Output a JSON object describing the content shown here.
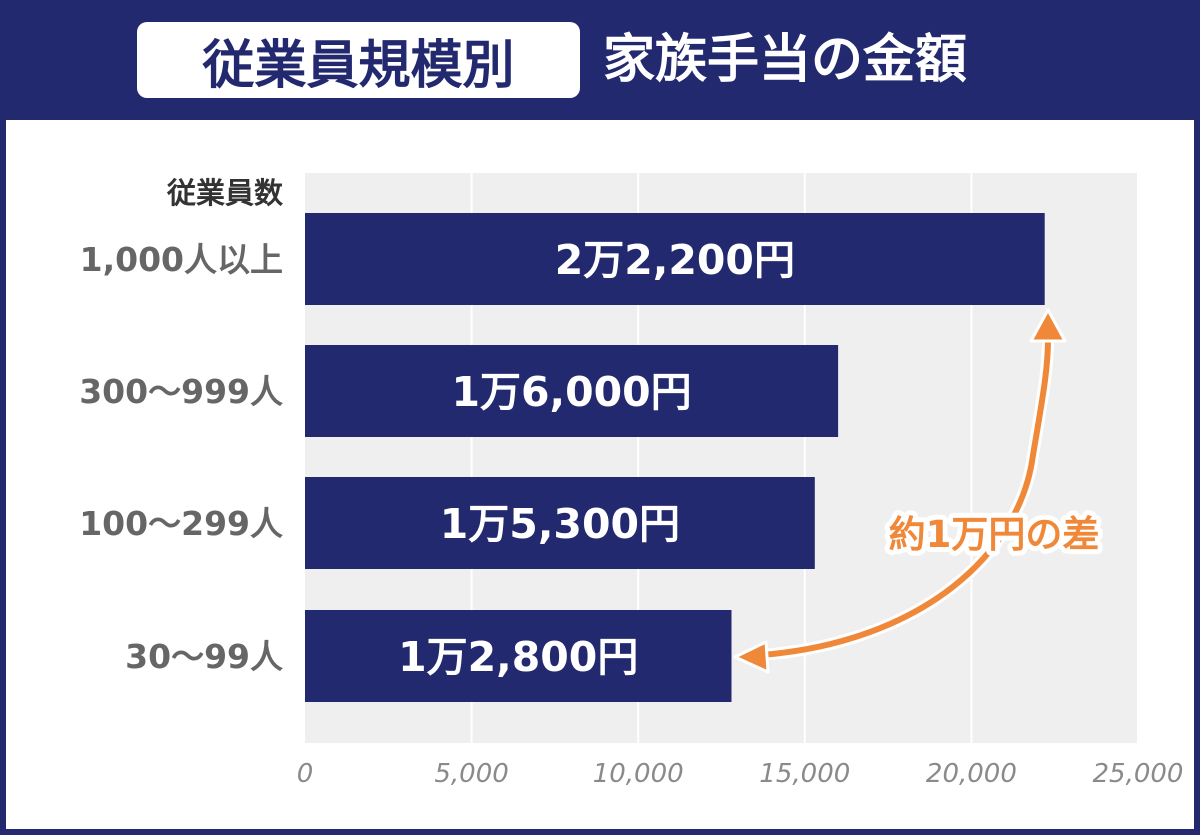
{
  "title": {
    "tag": "従業員規模別",
    "main": "家族手当の金額"
  },
  "chart_data": {
    "type": "bar",
    "orientation": "horizontal",
    "category_header": "従業員数",
    "categories": [
      "1,000人以上",
      "300～999人",
      "100～299人",
      "30～99人"
    ],
    "values": [
      22200,
      16000,
      15300,
      12800
    ],
    "data_labels": [
      "2万2,200円",
      "1万6,000円",
      "1万5,300円",
      "1万2,800円"
    ],
    "xlim": [
      0,
      25000
    ],
    "x_ticks": [
      0,
      5000,
      10000,
      15000,
      20000,
      25000
    ],
    "x_tick_labels": [
      "0",
      "5,000",
      "10,000",
      "15,000",
      "20,000",
      "25,000"
    ],
    "grid": true,
    "annotation": {
      "text": "約1万円の差",
      "from_category": "30～99人",
      "to_category": "1,000人以上"
    }
  },
  "colors": {
    "navy": "#23296e",
    "plot_bg": "#efefef",
    "grid": "#ffffff",
    "accent_orange": "#f0883a",
    "category_label": "#666666",
    "tick_label": "#8a8a8a",
    "header_label": "#333333"
  }
}
